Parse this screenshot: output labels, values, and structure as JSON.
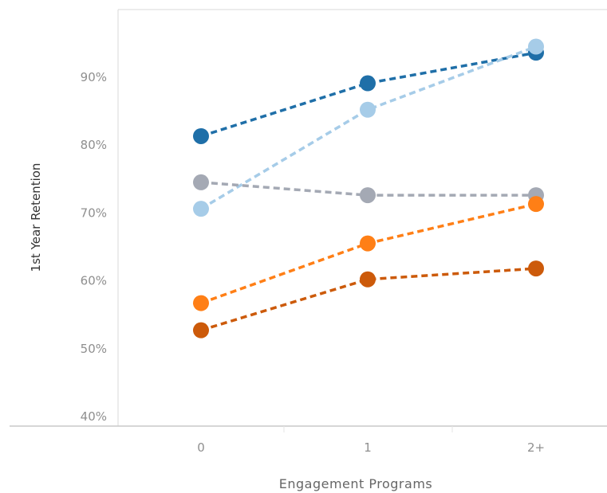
{
  "chart_data": {
    "type": "line",
    "title": "",
    "xlabel": "Engagement Programs",
    "ylabel": "1st Year Retention",
    "categories": [
      "0",
      "1",
      "2+"
    ],
    "ylim": [
      40,
      100
    ],
    "yticks": [
      40,
      50,
      60,
      70,
      80,
      90
    ],
    "ytick_labels": [
      "40%",
      "50%",
      "60%",
      "70%",
      "80%",
      "90%"
    ],
    "line_style": "dashed",
    "grid": false,
    "legend": "none",
    "series": [
      {
        "color": "#1f6fa8",
        "values": [
          81.2,
          89.0,
          93.5
        ]
      },
      {
        "color": "#a6cce8",
        "values": [
          70.5,
          85.1,
          94.4
        ]
      },
      {
        "color": "#a4a9b4",
        "values": [
          74.4,
          72.5,
          72.5
        ]
      },
      {
        "color": "#ff7f16",
        "values": [
          56.6,
          65.4,
          71.2
        ]
      },
      {
        "color": "#cc5a0a",
        "values": [
          52.6,
          60.1,
          61.7
        ]
      }
    ]
  }
}
